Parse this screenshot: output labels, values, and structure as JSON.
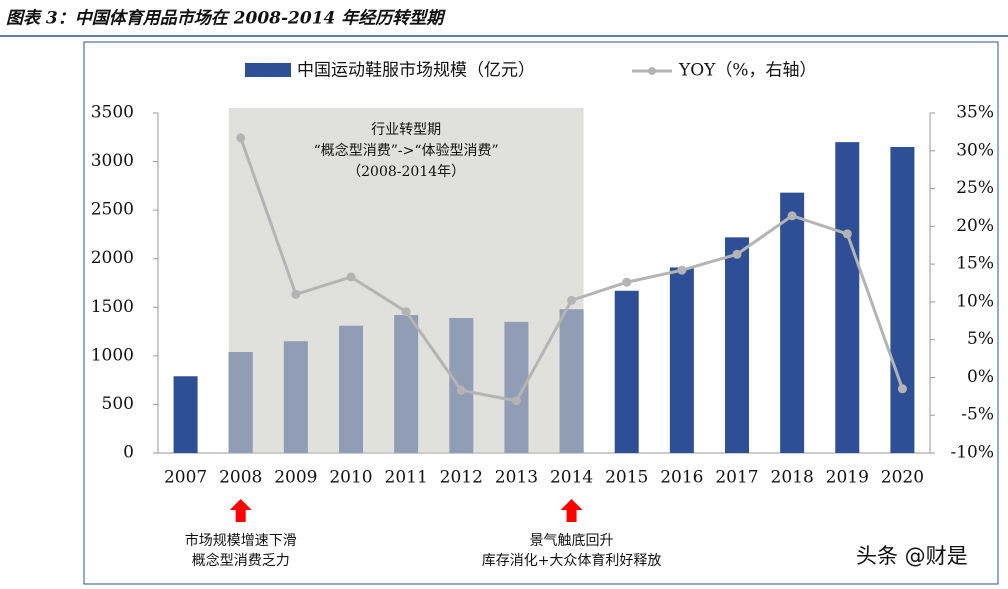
{
  "chart_data": {
    "type": "combo",
    "title": "图表 3：中国体育用品市场在 2008-2014 年经历转型期",
    "categories": [
      "2007",
      "2008",
      "2009",
      "2010",
      "2011",
      "2012",
      "2013",
      "2014",
      "2015",
      "2016",
      "2017",
      "2018",
      "2019",
      "2020"
    ],
    "series": [
      {
        "name": "中国运动鞋服市场规模（亿元）",
        "type": "bar",
        "color": "#2e4f96",
        "values": [
          790,
          1040,
          1150,
          1310,
          1420,
          1390,
          1350,
          1480,
          1670,
          1910,
          2220,
          2680,
          3200,
          3150
        ]
      },
      {
        "name": "YOY（%，右轴）",
        "type": "line",
        "axis": "y2",
        "color": "#b4b4b4",
        "values": [
          null,
          31.7,
          11,
          13.3,
          8.7,
          -1.7,
          -3.1,
          10.2,
          12.6,
          14.2,
          16.3,
          21.4,
          19,
          -1.5
        ]
      }
    ],
    "ylim": [
      0,
      3500
    ],
    "yticks": [
      0,
      500,
      1000,
      1500,
      2000,
      2500,
      3000,
      3500
    ],
    "y2lim": [
      -10,
      35
    ],
    "y2ticks": [
      {
        "value": -10,
        "label": "-10%"
      },
      {
        "value": -5,
        "label": "-5%"
      },
      {
        "value": 0,
        "label": "0%"
      },
      {
        "value": 5,
        "label": "5%"
      },
      {
        "value": 10,
        "label": "10%"
      },
      {
        "value": 15,
        "label": "15%"
      },
      {
        "value": 20,
        "label": "20%"
      },
      {
        "value": 25,
        "label": "25%"
      },
      {
        "value": 30,
        "label": "30%"
      },
      {
        "value": 35,
        "label": "35%"
      }
    ],
    "shaded_region": {
      "from": "2008",
      "to": "2014",
      "text": [
        "行业转型期",
        "“概念型消费”->“体验型消费”",
        "（2008-2014年）"
      ]
    },
    "annotations": [
      {
        "category": "2008",
        "lines": [
          "市场规模增速下滑",
          "概念型消费乏力"
        ]
      },
      {
        "category": "2014",
        "lines": [
          "景气触底回升",
          "库存消化+大众体育利好释放"
        ]
      }
    ],
    "watermark": "头条 @财是"
  }
}
